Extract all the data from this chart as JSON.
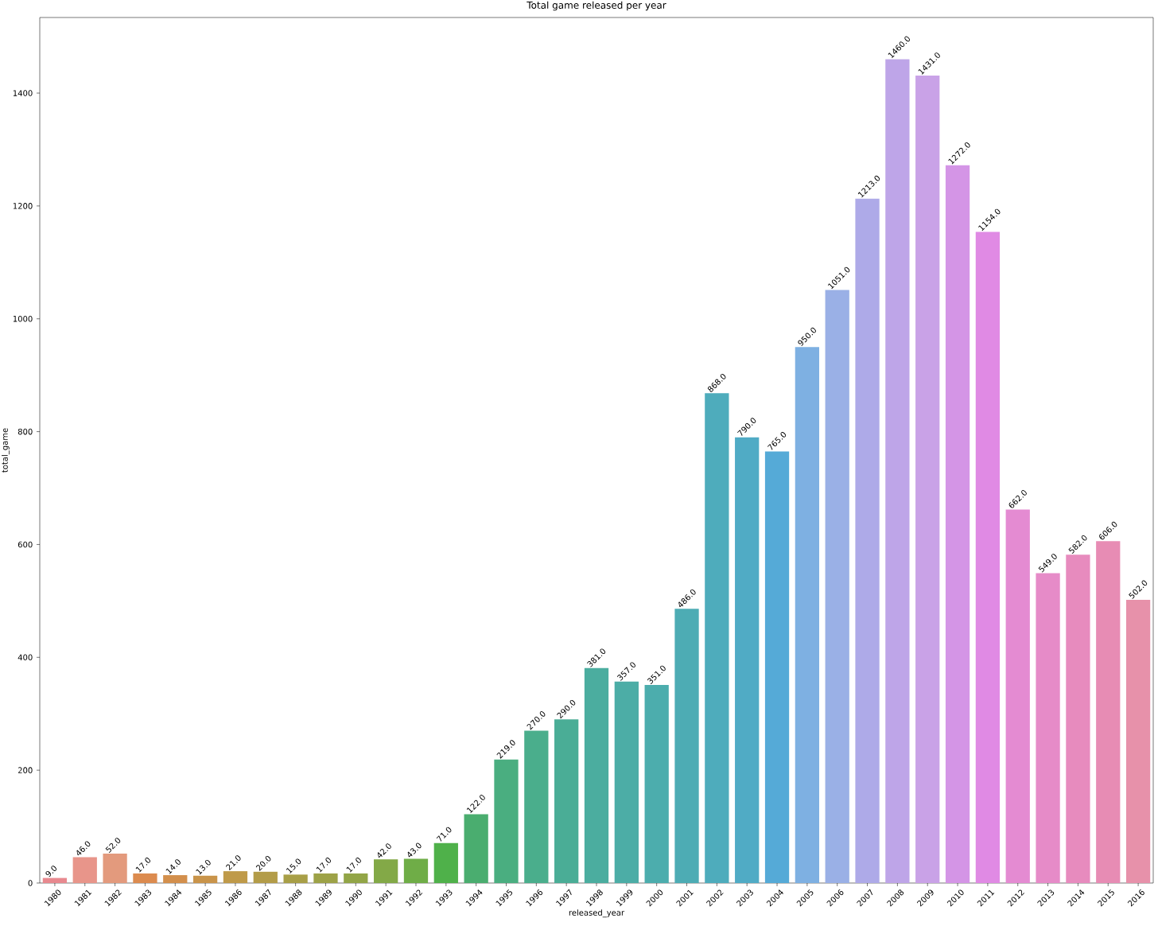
{
  "chart_data": {
    "type": "bar",
    "title": "Total game released per year",
    "xlabel": "released_year",
    "ylabel": "total_game",
    "categories": [
      "1980",
      "1981",
      "1982",
      "1983",
      "1984",
      "1985",
      "1986",
      "1987",
      "1988",
      "1989",
      "1990",
      "1991",
      "1992",
      "1993",
      "1994",
      "1995",
      "1996",
      "1997",
      "1998",
      "1999",
      "2000",
      "2001",
      "2002",
      "2003",
      "2004",
      "2005",
      "2006",
      "2007",
      "2008",
      "2009",
      "2010",
      "2011",
      "2012",
      "2013",
      "2014",
      "2015",
      "2016"
    ],
    "values": [
      9,
      46,
      52,
      17,
      14,
      13,
      21,
      20,
      15,
      17,
      17,
      42,
      43,
      71,
      122,
      219,
      270,
      290,
      381,
      357,
      351,
      486,
      868,
      790,
      765,
      950,
      1051,
      1213,
      1460,
      1431,
      1272,
      1154,
      662,
      549,
      582,
      606,
      502
    ],
    "value_labels": [
      "9.0",
      "46.0",
      "52.0",
      "17.0",
      "14.0",
      "13.0",
      "21.0",
      "20.0",
      "15.0",
      "17.0",
      "17.0",
      "42.0",
      "43.0",
      "71.0",
      "122.0",
      "219.0",
      "270.0",
      "290.0",
      "381.0",
      "357.0",
      "351.0",
      "486.0",
      "868.0",
      "790.0",
      "765.0",
      "950.0",
      "1051.0",
      "1213.0",
      "1460.0",
      "1431.0",
      "1272.0",
      "1154.0",
      "662.0",
      "549.0",
      "582.0",
      "606.0",
      "502.0"
    ],
    "colors": [
      "#e8898f",
      "#e8958a",
      "#e39a7d",
      "#dc8b4f",
      "#d38f4c",
      "#c9944a",
      "#bf9a49",
      "#b39c48",
      "#a89f47",
      "#9da247",
      "#92a547",
      "#83a947",
      "#6fad47",
      "#4fb14a",
      "#4aad6f",
      "#4aae80",
      "#4aae8c",
      "#4aad96",
      "#4bad9f",
      "#4cada6",
      "#4cadad",
      "#4dacb4",
      "#4eacbc",
      "#50abc5",
      "#55aad7",
      "#7eb0e2",
      "#9ab0e6",
      "#aeaae8",
      "#bea5e8",
      "#c9a2e7",
      "#d495e6",
      "#e08ae4",
      "#e48bd2",
      "#e68bc8",
      "#e78bbe",
      "#e78cb4",
      "#e791aa"
    ],
    "ylim": [
      0,
      1534
    ],
    "yticks": [
      0,
      200,
      400,
      600,
      800,
      1000,
      1200,
      1400
    ],
    "grid": false
  }
}
